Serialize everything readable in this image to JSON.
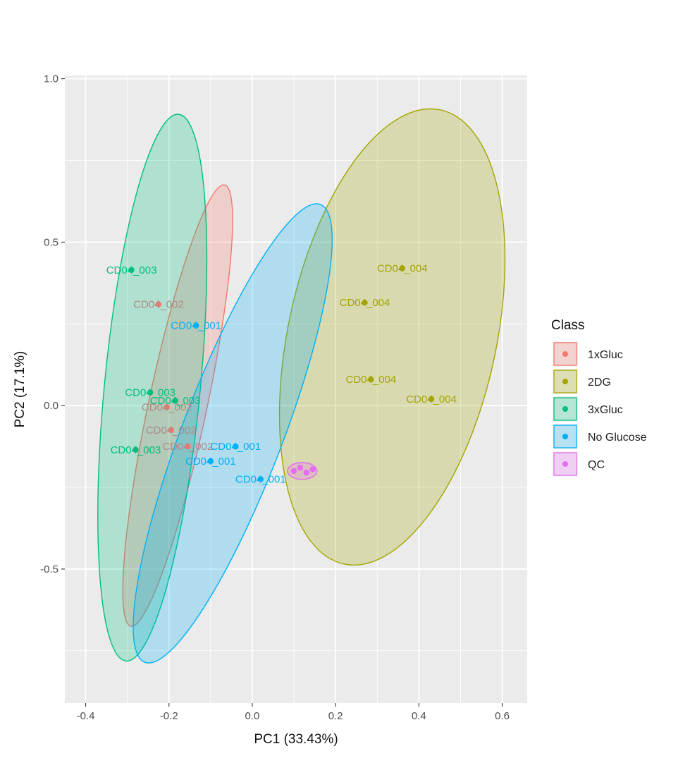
{
  "chart_data": {
    "type": "scatter",
    "xlabel": "PC1 (33.43%)",
    "ylabel": "PC2 (17.1%)",
    "xlim": [
      -0.45,
      0.66
    ],
    "ylim": [
      -0.91,
      1.01
    ],
    "x_ticks": [
      -0.4,
      -0.2,
      0.0,
      0.2,
      0.4,
      0.6
    ],
    "x_tick_labels": [
      "-0.4",
      "-0.2",
      "0.0",
      "0.2",
      "0.4",
      "0.6"
    ],
    "y_ticks": [
      -0.5,
      0.0,
      0.5,
      1.0
    ],
    "y_tick_labels": [
      "-0.5",
      "0.0",
      "0.5",
      "1.0"
    ],
    "grid": true,
    "legend": {
      "title": "Class",
      "position": "right"
    },
    "series": [
      {
        "name": "1xGluc",
        "color": "#F8766D",
        "label_color": "#b08a84",
        "points": [
          {
            "x": -0.225,
            "y": 0.31,
            "label": "CD04_002"
          },
          {
            "x": -0.205,
            "y": -0.005,
            "label": "CD04_002"
          },
          {
            "x": -0.195,
            "y": -0.075,
            "label": "CD04_002"
          },
          {
            "x": -0.155,
            "y": -0.125,
            "label": "CD04_002"
          }
        ],
        "ellipse": {
          "cx": -0.179,
          "cy": 0.0,
          "rx": 0.6901,
          "ry": 0.0701,
          "angle_deg": -78
        }
      },
      {
        "name": "2DG",
        "color": "#A3A500",
        "label_color": "#A3A500",
        "points": [
          {
            "x": 0.36,
            "y": 0.42,
            "label": "CD04_004"
          },
          {
            "x": 0.27,
            "y": 0.315,
            "label": "CD04_004"
          },
          {
            "x": 0.285,
            "y": 0.08,
            "label": "CD04_004"
          },
          {
            "x": 0.43,
            "y": 0.02,
            "label": "CD04_004"
          }
        ],
        "ellipse": {
          "cx": 0.336,
          "cy": 0.21,
          "rx": 0.7101,
          "ry": 0.2501,
          "angle_deg": -78
        }
      },
      {
        "name": "3xGluc",
        "color": "#00BF7D",
        "label_color": "#00BF7D",
        "points": [
          {
            "x": -0.29,
            "y": 0.415,
            "label": "CD04_003"
          },
          {
            "x": -0.245,
            "y": 0.04,
            "label": "CD04_003"
          },
          {
            "x": -0.185,
            "y": 0.015,
            "label": "CD04_003"
          },
          {
            "x": -0.28,
            "y": -0.135,
            "label": "CD04_003"
          }
        ],
        "ellipse": {
          "cx": -0.24,
          "cy": 0.055,
          "rx": 0.8401,
          "ry": 0.1151,
          "angle_deg": -84.5
        }
      },
      {
        "name": "No Glucose",
        "color": "#00B0F6",
        "label_color": "#00B0F6",
        "points": [
          {
            "x": -0.135,
            "y": 0.245,
            "label": "CD04_001"
          },
          {
            "x": -0.04,
            "y": -0.125,
            "label": "CD04_001"
          },
          {
            "x": -0.1,
            "y": -0.17,
            "label": "CD04_001"
          },
          {
            "x": 0.02,
            "y": -0.225,
            "label": "CD04_001"
          }
        ],
        "ellipse": {
          "cx": -0.047,
          "cy": -0.085,
          "rx": 0.7501,
          "ry": 0.1201,
          "angle_deg": -69
        }
      },
      {
        "name": "QC",
        "color": "#E76BF3",
        "label_color": "#E76BF3",
        "points": [
          {
            "x": 0.1,
            "y": -0.2,
            "label": ""
          },
          {
            "x": 0.115,
            "y": -0.19,
            "label": ""
          },
          {
            "x": 0.13,
            "y": -0.205,
            "label": ""
          },
          {
            "x": 0.145,
            "y": -0.195,
            "label": ""
          }
        ],
        "ellipse": {
          "cx": 0.12,
          "cy": -0.2,
          "rx": 0.0451,
          "ry": 0.0201,
          "angle_deg": 0
        }
      }
    ]
  }
}
